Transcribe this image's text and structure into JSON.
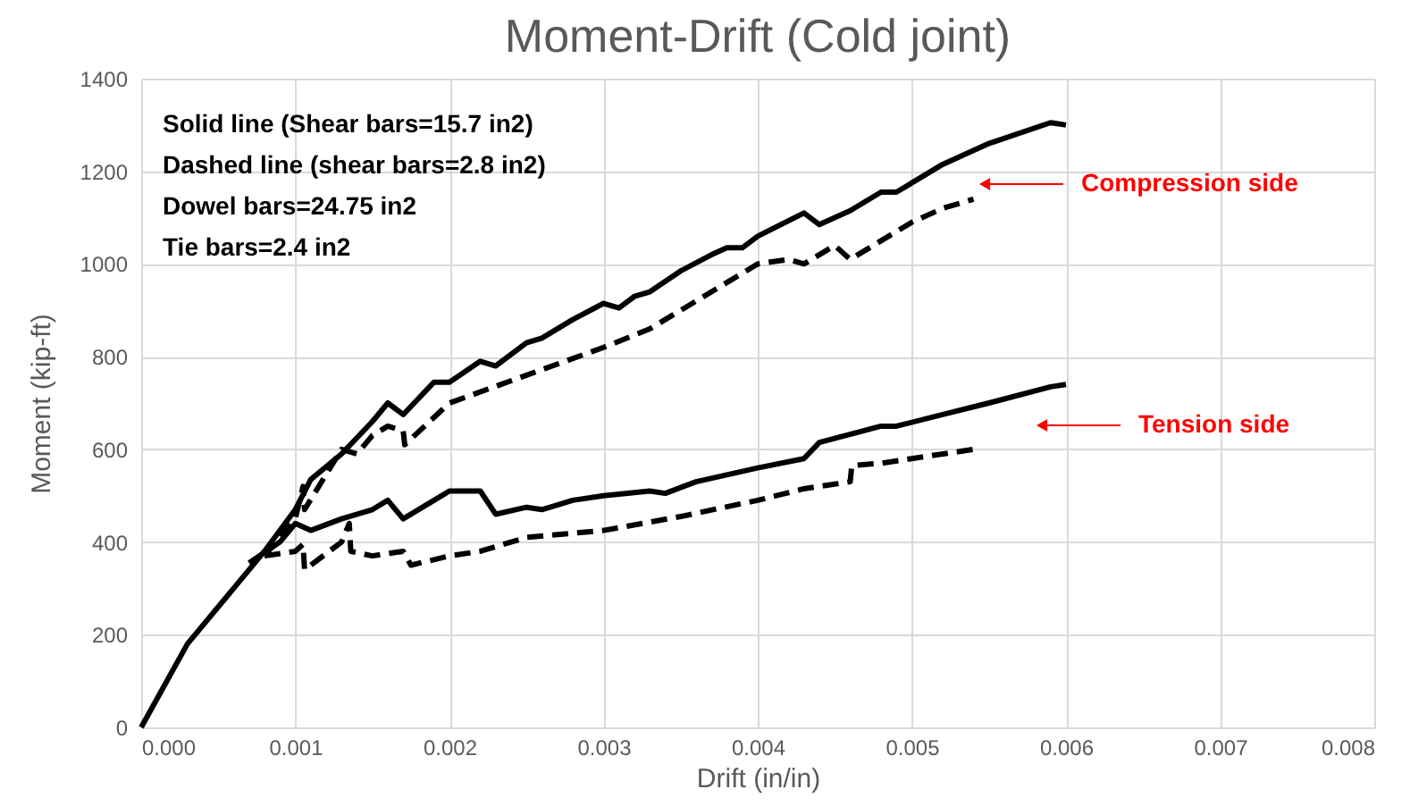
{
  "chart_data": {
    "type": "line",
    "title": "Moment-Drift (Cold joint)",
    "xlabel": "Drift (in/in)",
    "ylabel": "Moment  (kip-ft)",
    "xlim": [
      0,
      0.008
    ],
    "ylim": [
      0,
      1400
    ],
    "xticks": [
      {
        "value": 0,
        "label": "0.000"
      },
      {
        "value": 0.001,
        "label": "0.001"
      },
      {
        "value": 0.002,
        "label": "0.002"
      },
      {
        "value": 0.003,
        "label": "0.003"
      },
      {
        "value": 0.004,
        "label": "0.004"
      },
      {
        "value": 0.005,
        "label": "0.005"
      },
      {
        "value": 0.006,
        "label": "0.006"
      },
      {
        "value": 0.007,
        "label": "0.007"
      },
      {
        "value": 0.008,
        "label": "0.008"
      }
    ],
    "yticks": [
      0,
      200,
      400,
      600,
      800,
      1000,
      1200,
      1400
    ],
    "grid": true,
    "marker": "none",
    "series": [
      {
        "color": "#000000",
        "line_style": "solid",
        "x": [
          0,
          0.0003,
          0.0006,
          0.0008,
          0.001,
          0.0011,
          0.0013,
          0.0015,
          0.0016,
          0.0017,
          0.0019,
          0.002,
          0.0022,
          0.0023,
          0.0025,
          0.0026,
          0.0028,
          0.003,
          0.0031,
          0.0032,
          0.0033,
          0.0035,
          0.0037,
          0.0038,
          0.0039,
          0.004,
          0.0043,
          0.0044,
          0.0046,
          0.0048,
          0.0049,
          0.005,
          0.0052,
          0.0055,
          0.0059,
          0.006
        ],
        "values": [
          0,
          180,
          300,
          380,
          470,
          535,
          590,
          660,
          700,
          675,
          745,
          745,
          790,
          780,
          830,
          840,
          880,
          915,
          905,
          930,
          940,
          985,
          1020,
          1035,
          1035,
          1060,
          1110,
          1085,
          1115,
          1155,
          1155,
          1175,
          1215,
          1260,
          1305,
          1300
        ]
      },
      {
        "color": "#000000",
        "line_style": "dashed",
        "x": [
          0.0008,
          0.001,
          0.00105,
          0.00106,
          0.0013,
          0.0014,
          0.0015,
          0.0016,
          0.0017,
          0.00171,
          0.002,
          0.0025,
          0.003,
          0.0033,
          0.004,
          0.0042,
          0.0043,
          0.0045,
          0.0046,
          0.005,
          0.0052,
          0.0054
        ],
        "values": [
          370,
          450,
          520,
          470,
          600,
          590,
          630,
          650,
          640,
          610,
          700,
          760,
          820,
          860,
          1000,
          1010,
          1000,
          1040,
          1010,
          1090,
          1120,
          1140
        ]
      },
      {
        "color": "#000000",
        "line_style": "solid",
        "x": [
          0.0007,
          0.0009,
          0.001,
          0.0011,
          0.0013,
          0.0015,
          0.0016,
          0.0017,
          0.0019,
          0.002,
          0.0022,
          0.0023,
          0.0025,
          0.0026,
          0.0028,
          0.003,
          0.0033,
          0.0034,
          0.0036,
          0.004,
          0.0043,
          0.0044,
          0.0048,
          0.0049,
          0.0052,
          0.0055,
          0.0059,
          0.006
        ],
        "values": [
          355,
          400,
          440,
          425,
          450,
          470,
          490,
          450,
          490,
          510,
          510,
          460,
          475,
          470,
          490,
          500,
          510,
          505,
          530,
          560,
          580,
          615,
          650,
          650,
          675,
          700,
          735,
          740
        ]
      },
      {
        "color": "#000000",
        "line_style": "dashed",
        "x": [
          0.0008,
          0.001,
          0.00105,
          0.00106,
          0.0013,
          0.00135,
          0.00136,
          0.0015,
          0.0017,
          0.00175,
          0.002,
          0.0022,
          0.0025,
          0.003,
          0.0035,
          0.004,
          0.0043,
          0.0045,
          0.0046,
          0.00461,
          0.0048,
          0.005,
          0.0054
        ],
        "values": [
          370,
          380,
          395,
          340,
          400,
          440,
          380,
          370,
          380,
          350,
          370,
          380,
          410,
          425,
          455,
          490,
          515,
          525,
          530,
          565,
          570,
          580,
          600
        ]
      }
    ],
    "annotations": [
      "Solid line (Shear bars=15.7 in2)",
      "Dashed line (shear bars=2.8 in2)",
      "Dowel bars=24.75 in2",
      "Tie bars=2.4 in2",
      "Compression side",
      "Tension side"
    ]
  }
}
